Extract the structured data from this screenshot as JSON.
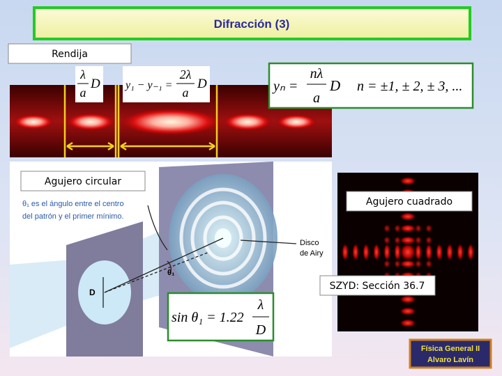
{
  "title": "Difracción (3)",
  "sections": {
    "slit": {
      "label": "Rendija"
    },
    "circular": {
      "label": "Agujero circular"
    },
    "square": {
      "label": "Agujero cuadrado"
    }
  },
  "reference": "SZYD: Sección 36.7",
  "formulas": {
    "slit_width": {
      "num": "λ",
      "den": "a",
      "factor": "D"
    },
    "central_width": {
      "lhs": "y₁ − y₋₁ =",
      "num": "2λ",
      "den": "a",
      "factor": "D"
    },
    "minima": {
      "lhs": "yₙ =",
      "num": "nλ",
      "den": "a",
      "factor": "D",
      "orders": "n = ±1, ± 2, ± 3, ..."
    },
    "airy": {
      "lhs": "sin θ₁ = 1.22",
      "num": "λ",
      "den": "D"
    }
  },
  "figure": {
    "caption_lines": [
      "θ₁ es el ángulo entre el centro",
      "del patrón y el primer mínimo."
    ],
    "airy_disk_lines": [
      "Disco",
      "de Airy"
    ],
    "angle_label": "θ₁",
    "aperture_label": "D"
  },
  "logo": {
    "line1": "Física General II",
    "line2": "Alvaro Lavín"
  }
}
